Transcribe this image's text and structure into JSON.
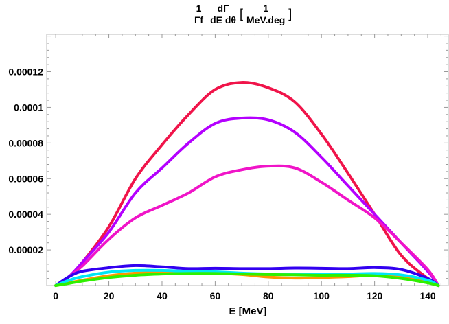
{
  "chart_data": {
    "type": "line",
    "title": {
      "num1": "1",
      "den1": "Γf",
      "num2": "dΓ",
      "den2": "dE dθ",
      "bracket_open": "[",
      "num3": "1",
      "den3": "MeV.deg",
      "bracket_close": "]"
    },
    "xlabel": "E [MeV]",
    "ylabel": "",
    "xlim": [
      -3.4,
      148
    ],
    "ylim": [
      0,
      0.000141
    ],
    "xticks": [
      0,
      20,
      40,
      60,
      80,
      100,
      120,
      140
    ],
    "yticks": [
      2e-05,
      4e-05,
      6e-05,
      8e-05,
      0.0001,
      0.00012
    ],
    "ytick_labels": [
      "0.00002",
      "0.00004",
      "0.00006",
      "0.00008",
      "0.0001",
      "0.00012"
    ],
    "grid": false,
    "x": [
      0,
      5,
      10,
      20,
      30,
      40,
      50,
      60,
      70,
      80,
      90,
      100,
      110,
      120,
      130,
      140,
      144
    ],
    "series": [
      {
        "color": "#f0144a",
        "values": [
          0,
          5e-06,
          1.3e-05,
          3.3e-05,
          6e-05,
          7.9e-05,
          9.6e-05,
          0.00011,
          0.000114,
          0.000111,
          0.000103,
          8.5e-05,
          6.3e-05,
          4e-05,
          1.7e-05,
          4e-06,
          0
        ]
      },
      {
        "color": "#b400ff",
        "values": [
          0,
          5e-06,
          1.3e-05,
          3e-05,
          5.2e-05,
          6.6e-05,
          8e-05,
          9.1e-05,
          9.4e-05,
          9.3e-05,
          8.6e-05,
          7.2e-05,
          5.6e-05,
          4e-05,
          2.4e-05,
          8e-06,
          0
        ]
      },
      {
        "color": "#f014c8",
        "values": [
          0,
          5e-06,
          1.1e-05,
          2.6e-05,
          3.8e-05,
          4.5e-05,
          5.2e-05,
          6.1e-05,
          6.5e-05,
          6.7e-05,
          6.6e-05,
          5.8e-05,
          4.8e-05,
          3.8e-05,
          2.4e-05,
          9e-06,
          0
        ]
      },
      {
        "color": "#3200f0",
        "values": [
          0,
          5e-06,
          8e-06,
          1e-05,
          1.12e-05,
          1.05e-05,
          9.5e-06,
          9.7e-06,
          9.5e-06,
          9.5e-06,
          9.8e-06,
          9.7e-06,
          9.5e-06,
          1.01e-05,
          9e-06,
          4e-06,
          0
        ]
      },
      {
        "color": "#00e6f5",
        "values": [
          0,
          3e-06,
          5e-06,
          7.5e-06,
          8.5e-06,
          8.5e-06,
          8e-06,
          7.7e-06,
          7e-06,
          6.5e-06,
          6.3e-06,
          6.5e-06,
          6.5e-06,
          6.8e-06,
          6e-06,
          3e-06,
          0
        ]
      },
      {
        "color": "#ff9600",
        "values": [
          0,
          1.5e-06,
          3e-06,
          5.5e-06,
          7e-06,
          7.2e-06,
          7.2e-06,
          7e-06,
          6.2e-06,
          4.8e-06,
          4.2e-06,
          4.5e-06,
          5e-06,
          5.8e-06,
          5e-06,
          2e-06,
          0
        ]
      },
      {
        "color": "#30f000",
        "values": [
          0,
          1.2e-06,
          2.5e-06,
          4.5e-06,
          5.8e-06,
          6.5e-06,
          6.8e-06,
          6.8e-06,
          6.5e-06,
          6.2e-06,
          6e-06,
          5.8e-06,
          5.8e-06,
          5.5e-06,
          4e-06,
          1.5e-06,
          0
        ]
      }
    ]
  }
}
